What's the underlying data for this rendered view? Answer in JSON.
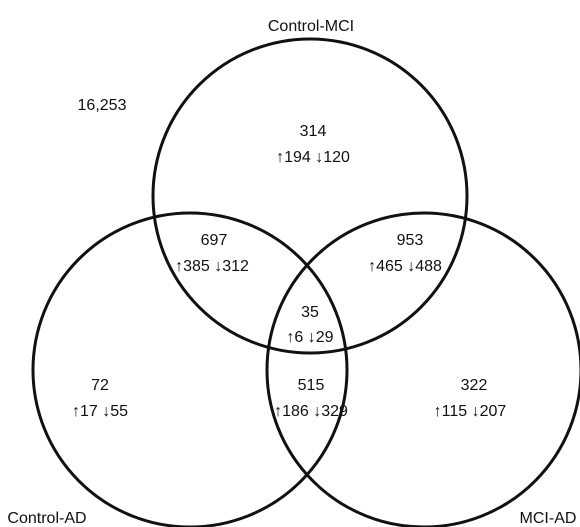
{
  "sets": [
    {
      "label": "Control-MCI"
    },
    {
      "label": "Control-AD"
    },
    {
      "label": "MCI-AD"
    }
  ],
  "outside": "16,253",
  "regions": [
    {
      "total": 314,
      "up": 194,
      "down": 120
    },
    {
      "total": 697,
      "up": 385,
      "down": 312
    },
    {
      "total": 953,
      "up": 465,
      "down": 488
    },
    {
      "total": 35,
      "up": 6,
      "down": 29
    },
    {
      "total": 72,
      "up": 17,
      "down": 55
    },
    {
      "total": 515,
      "up": 186,
      "down": 329
    },
    {
      "total": 322,
      "up": 115,
      "down": 207
    }
  ]
}
